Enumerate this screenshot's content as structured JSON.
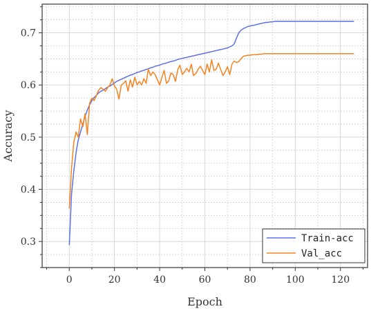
{
  "chart_data": {
    "type": "line",
    "title": "",
    "xlabel": "Epoch",
    "ylabel": "Accuracy",
    "xlim": [
      -12,
      132
    ],
    "ylim": [
      0.25,
      0.755
    ],
    "xticks": [
      0,
      20,
      40,
      60,
      80,
      100,
      120
    ],
    "yticks": [
      0.3,
      0.4,
      0.5,
      0.6,
      0.7
    ],
    "xtick_labels": [
      "0",
      "20",
      "40",
      "60",
      "80",
      "100",
      "120"
    ],
    "ytick_labels": [
      "0.3",
      "0.4",
      "0.5",
      "0.6",
      "0.7"
    ],
    "grid": true,
    "legend_position": "bottom-right",
    "series": [
      {
        "name": "Train-acc",
        "color": "#5b6fea",
        "x": [
          0,
          1,
          2,
          3,
          4,
          5,
          6,
          7,
          8,
          9,
          10,
          11,
          12,
          13,
          14,
          15,
          16,
          17,
          18,
          19,
          20,
          21,
          22,
          23,
          24,
          25,
          26,
          27,
          28,
          29,
          30,
          31,
          32,
          33,
          34,
          35,
          36,
          37,
          38,
          39,
          40,
          41,
          42,
          43,
          44,
          45,
          46,
          47,
          48,
          49,
          50,
          51,
          52,
          53,
          54,
          55,
          56,
          57,
          58,
          59,
          60,
          61,
          62,
          63,
          64,
          65,
          66,
          67,
          68,
          69,
          70,
          71,
          72,
          73,
          74,
          75,
          76,
          77,
          78,
          79,
          80,
          81,
          82,
          83,
          84,
          85,
          86,
          87,
          88,
          89,
          90,
          91,
          92,
          93,
          94,
          95,
          96,
          97,
          98,
          99,
          100,
          101,
          102,
          103,
          104,
          105,
          106,
          107,
          108,
          109,
          110,
          111,
          112,
          113,
          114,
          115,
          116,
          117,
          118,
          119,
          120,
          121,
          122,
          123,
          124,
          125,
          126
        ],
        "values": [
          0.293,
          0.39,
          0.435,
          0.47,
          0.495,
          0.51,
          0.525,
          0.54,
          0.552,
          0.562,
          0.57,
          0.576,
          0.58,
          0.585,
          0.588,
          0.59,
          0.593,
          0.596,
          0.598,
          0.601,
          0.604,
          0.607,
          0.609,
          0.611,
          0.613,
          0.615,
          0.617,
          0.619,
          0.62,
          0.622,
          0.624,
          0.625,
          0.627,
          0.628,
          0.63,
          0.631,
          0.633,
          0.634,
          0.636,
          0.637,
          0.638,
          0.64,
          0.641,
          0.642,
          0.644,
          0.645,
          0.646,
          0.647,
          0.649,
          0.65,
          0.651,
          0.652,
          0.653,
          0.654,
          0.655,
          0.656,
          0.657,
          0.658,
          0.659,
          0.66,
          0.661,
          0.662,
          0.663,
          0.664,
          0.665,
          0.666,
          0.667,
          0.668,
          0.669,
          0.67,
          0.671,
          0.673,
          0.675,
          0.679,
          0.69,
          0.7,
          0.705,
          0.708,
          0.71,
          0.712,
          0.713,
          0.714,
          0.715,
          0.716,
          0.717,
          0.718,
          0.719,
          0.72,
          0.72,
          0.721,
          0.721,
          0.722,
          0.722,
          0.722,
          0.722,
          0.722,
          0.722,
          0.722,
          0.722,
          0.722,
          0.722,
          0.722,
          0.722,
          0.722,
          0.722,
          0.722,
          0.722,
          0.722,
          0.722,
          0.722,
          0.722,
          0.722,
          0.722,
          0.722,
          0.722,
          0.722,
          0.722,
          0.722,
          0.722,
          0.722,
          0.722,
          0.722,
          0.722,
          0.722,
          0.722,
          0.722,
          0.722
        ]
      },
      {
        "name": "Val_acc",
        "color": "#f58220",
        "x": [
          0,
          1,
          2,
          3,
          4,
          5,
          6,
          7,
          8,
          9,
          10,
          11,
          12,
          13,
          14,
          15,
          16,
          17,
          18,
          19,
          20,
          21,
          22,
          23,
          24,
          25,
          26,
          27,
          28,
          29,
          30,
          31,
          32,
          33,
          34,
          35,
          36,
          37,
          38,
          39,
          40,
          41,
          42,
          43,
          44,
          45,
          46,
          47,
          48,
          49,
          50,
          51,
          52,
          53,
          54,
          55,
          56,
          57,
          58,
          59,
          60,
          61,
          62,
          63,
          64,
          65,
          66,
          67,
          68,
          69,
          70,
          71,
          72,
          73,
          74,
          75,
          76,
          77,
          78,
          79,
          80,
          81,
          82,
          83,
          84,
          85,
          86,
          87,
          88,
          89,
          90,
          91,
          92,
          93,
          94,
          95,
          96,
          97,
          98,
          99,
          100,
          101,
          102,
          103,
          104,
          105,
          106,
          107,
          108,
          109,
          110,
          111,
          112,
          113,
          114,
          115,
          116,
          117,
          118,
          119,
          120,
          121,
          122,
          123,
          124,
          125,
          126
        ],
        "values": [
          0.363,
          0.44,
          0.49,
          0.51,
          0.5,
          0.535,
          0.52,
          0.545,
          0.505,
          0.565,
          0.575,
          0.57,
          0.58,
          0.59,
          0.595,
          0.592,
          0.588,
          0.595,
          0.6,
          0.612,
          0.598,
          0.592,
          0.573,
          0.6,
          0.603,
          0.608,
          0.588,
          0.61,
          0.596,
          0.615,
          0.6,
          0.607,
          0.6,
          0.612,
          0.603,
          0.63,
          0.618,
          0.625,
          0.62,
          0.61,
          0.6,
          0.615,
          0.628,
          0.603,
          0.608,
          0.623,
          0.62,
          0.607,
          0.63,
          0.638,
          0.62,
          0.625,
          0.632,
          0.625,
          0.64,
          0.618,
          0.622,
          0.63,
          0.636,
          0.628,
          0.62,
          0.64,
          0.625,
          0.648,
          0.628,
          0.63,
          0.642,
          0.63,
          0.618,
          0.625,
          0.635,
          0.62,
          0.64,
          0.646,
          0.643,
          0.645,
          0.65,
          0.655,
          0.656,
          0.657,
          0.657,
          0.658,
          0.658,
          0.658,
          0.659,
          0.659,
          0.66,
          0.66,
          0.66,
          0.66,
          0.66,
          0.66,
          0.66,
          0.66,
          0.66,
          0.66,
          0.66,
          0.66,
          0.66,
          0.66,
          0.66,
          0.66,
          0.66,
          0.66,
          0.66,
          0.66,
          0.66,
          0.66,
          0.66,
          0.66,
          0.66,
          0.66,
          0.66,
          0.66,
          0.66,
          0.66,
          0.66,
          0.66,
          0.66,
          0.66,
          0.66,
          0.66,
          0.66,
          0.66,
          0.66,
          0.66,
          0.66
        ]
      }
    ]
  }
}
